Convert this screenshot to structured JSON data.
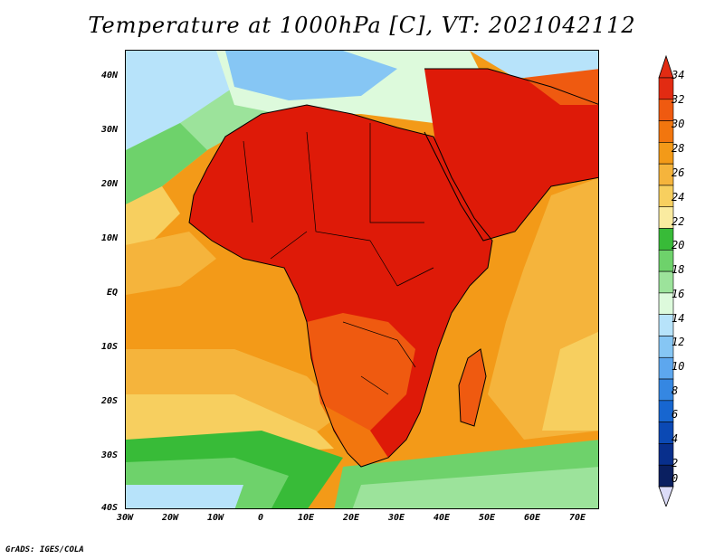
{
  "title": "Temperature at 1000hPa [C], VT: 2021042112",
  "credit": "GrADS: IGES/COLA",
  "lat_ticks": [
    "40N",
    "30N",
    "20N",
    "10N",
    "EQ",
    "10S",
    "20S",
    "30S",
    "40S"
  ],
  "lon_ticks": [
    "30W",
    "20W",
    "10W",
    "0",
    "10E",
    "20E",
    "30E",
    "40E",
    "50E",
    "60E",
    "70E"
  ],
  "colorbar": {
    "labels": [
      "34",
      "32",
      "30",
      "28",
      "26",
      "24",
      "22",
      "20",
      "18",
      "16",
      "14",
      "12",
      "10",
      "8",
      "6",
      "4",
      "2",
      "0"
    ],
    "colors": [
      "#e22b12",
      "#ef5a10",
      "#f2760e",
      "#f39a18",
      "#f5b43c",
      "#f7cf5f",
      "#faeba0",
      "#38bb38",
      "#6ed26b",
      "#9ce39b",
      "#ddfadc",
      "#b7e3fa",
      "#86c6f4",
      "#5da7ee",
      "#3587e2",
      "#1766d0",
      "#0b49b4",
      "#082f8c",
      "#0a1f60"
    ]
  },
  "legend_colors": {
    "warm_extreme": "#de1a08",
    "hot": "#ef5a10",
    "ocean_tropical": "#f39a18",
    "ocean_mid": "#f5b43c",
    "ocean_cool": "#f7cf5f",
    "land_green": "#38bb38",
    "sea_green": "#6ed26b",
    "light_blue": "#b7e3fa"
  }
}
